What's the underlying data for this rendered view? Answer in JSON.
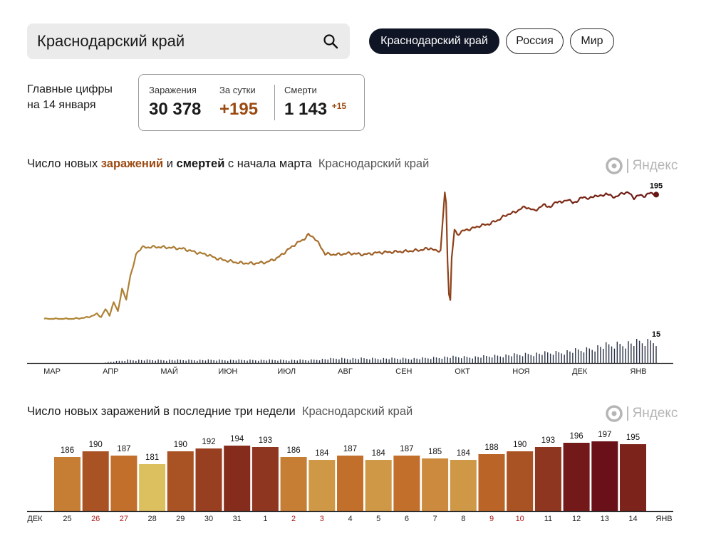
{
  "search": {
    "value": "Краснодарский край",
    "icon": "search-icon"
  },
  "region_tabs": [
    "Краснодарский край",
    "Россия",
    "Мир"
  ],
  "main_numbers": {
    "label_line1": "Главные цифры",
    "label_line2": "на 14 января",
    "infections_label": "Заражения",
    "infections_value": "30 378",
    "daily_label": "За сутки",
    "daily_value": "+195",
    "deaths_label": "Смерти",
    "deaths_value": "1 143",
    "deaths_delta": "+15"
  },
  "chart1_title": {
    "part1": "Число новых ",
    "infections_word": "заражений",
    "part2": " и ",
    "deaths_word": "смертей",
    "part3": " с начала марта",
    "region": "Краснодарский край"
  },
  "chart2_title": {
    "text": "Число новых заражений в последние три недели",
    "region": "Краснодарский край"
  },
  "brand": "Яндекс",
  "colors": {
    "accent": "#9b4a12",
    "dark": "#0f1524",
    "deaths": "#2a3245"
  },
  "chart_data": [
    {
      "type": "line",
      "title": "Число новых заражений и смертей с начала марта",
      "x_tick_labels": [
        "МАР",
        "АПР",
        "МАЙ",
        "ИЮН",
        "ИЮЛ",
        "АВГ",
        "СЕН",
        "ОКТ",
        "НОЯ",
        "ДЕК",
        "ЯНВ"
      ],
      "series": [
        {
          "name": "Заражения",
          "last_label": "195",
          "anchors": [
            [
              0,
              0
            ],
            [
              20,
              0
            ],
            [
              25,
              1
            ],
            [
              30,
              2
            ],
            [
              35,
              5
            ],
            [
              38,
              8
            ],
            [
              41,
              3
            ],
            [
              44,
              15
            ],
            [
              47,
              6
            ],
            [
              50,
              26
            ],
            [
              53,
              12
            ],
            [
              56,
              47
            ],
            [
              59,
              30
            ],
            [
              62,
              70
            ],
            [
              64,
              80
            ],
            [
              66,
              102
            ],
            [
              70,
              112
            ],
            [
              80,
              113
            ],
            [
              90,
              112
            ],
            [
              100,
              110
            ],
            [
              110,
              104
            ],
            [
              117,
              101
            ],
            [
              124,
              95
            ],
            [
              130,
              92
            ],
            [
              140,
              88
            ],
            [
              150,
              87
            ],
            [
              160,
              89
            ],
            [
              168,
              96
            ],
            [
              175,
              108
            ],
            [
              181,
              118
            ],
            [
              186,
              124
            ],
            [
              190,
              132
            ],
            [
              194,
              128
            ],
            [
              198,
              116
            ],
            [
              202,
              102
            ],
            [
              210,
              101
            ],
            [
              220,
              103
            ],
            [
              230,
              101
            ],
            [
              240,
              104
            ],
            [
              250,
              105
            ],
            [
              260,
              106
            ],
            [
              270,
              108
            ],
            [
              278,
              111
            ],
            [
              282,
              106
            ],
            [
              285,
              108
            ],
            [
              288,
              198
            ],
            [
              289,
              180
            ],
            [
              290,
              90
            ],
            [
              291,
              40
            ],
            [
              292,
              30
            ],
            [
              293,
              95
            ],
            [
              295,
              140
            ],
            [
              297,
              132
            ],
            [
              300,
              137
            ],
            [
              304,
              140
            ],
            [
              308,
              142
            ],
            [
              313,
              146
            ],
            [
              320,
              149
            ],
            [
              327,
              156
            ],
            [
              333,
              164
            ],
            [
              338,
              167
            ],
            [
              342,
              172
            ],
            [
              346,
              176
            ],
            [
              352,
              170
            ],
            [
              356,
              174
            ],
            [
              360,
              180
            ],
            [
              364,
              174
            ],
            [
              368,
              185
            ],
            [
              372,
              182
            ],
            [
              376,
              188
            ],
            [
              380,
              182
            ],
            [
              384,
              186
            ],
            [
              388,
              192
            ],
            [
              392,
              188
            ],
            [
              396,
              194
            ],
            [
              400,
              192
            ],
            [
              404,
              197
            ],
            [
              408,
              192
            ],
            [
              412,
              192
            ],
            [
              416,
              198
            ],
            [
              420,
              198
            ],
            [
              424,
              190
            ],
            [
              428,
              194
            ],
            [
              432,
              193
            ],
            [
              436,
              198
            ],
            [
              440,
              195
            ]
          ]
        },
        {
          "name": "Смерти",
          "last_label": "15",
          "anchors": [
            [
              0,
              0
            ],
            [
              40,
              0
            ],
            [
              50,
              1
            ],
            [
              60,
              2
            ],
            [
              70,
              2
            ],
            [
              90,
              2
            ],
            [
              110,
              2
            ],
            [
              130,
              2
            ],
            [
              150,
              2
            ],
            [
              170,
              2
            ],
            [
              190,
              2
            ],
            [
              210,
              3
            ],
            [
              230,
              3
            ],
            [
              250,
              3
            ],
            [
              270,
              3
            ],
            [
              290,
              4
            ],
            [
              310,
              4
            ],
            [
              330,
              5
            ],
            [
              350,
              6
            ],
            [
              370,
              7
            ],
            [
              390,
              9
            ],
            [
              400,
              11
            ],
            [
              410,
              12
            ],
            [
              420,
              13
            ],
            [
              430,
              14
            ],
            [
              440,
              15
            ]
          ]
        }
      ],
      "y_ranges": {
        "infections": [
          0,
          210
        ],
        "deaths": [
          0,
          16
        ]
      },
      "days": 441
    },
    {
      "type": "bar",
      "title": "Число новых заражений в последние три недели",
      "start_label": "ДЕК",
      "end_label": "ЯНВ",
      "categories": [
        "25",
        "26",
        "27",
        "28",
        "29",
        "30",
        "31",
        "1",
        "2",
        "3",
        "4",
        "5",
        "6",
        "7",
        "8",
        "9",
        "10",
        "11",
        "12",
        "13",
        "14"
      ],
      "values": [
        186,
        190,
        187,
        181,
        190,
        192,
        194,
        193,
        186,
        184,
        187,
        184,
        187,
        185,
        184,
        188,
        190,
        193,
        196,
        197,
        195
      ],
      "weekend_days": [
        "26",
        "27",
        "2",
        "3",
        "9",
        "10"
      ],
      "ylim": [
        178,
        198
      ]
    }
  ]
}
